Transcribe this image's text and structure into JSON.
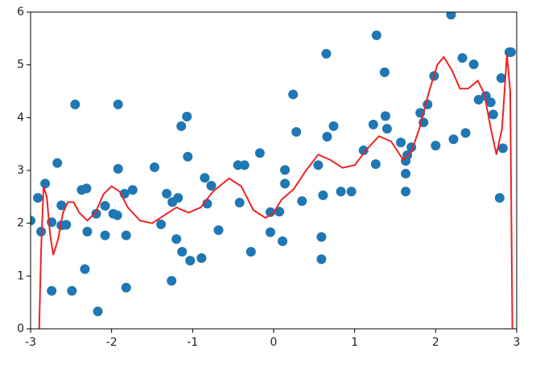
{
  "chart_data": {
    "type": "scatter",
    "xlim": [
      -3,
      3
    ],
    "ylim": [
      0,
      6
    ],
    "xticks": [
      -3,
      -2,
      -1,
      0,
      1,
      2,
      3
    ],
    "yticks": [
      0,
      1,
      2,
      3,
      4,
      5,
      6
    ],
    "grid": false,
    "series": [
      {
        "type": "scatter",
        "color": "#1f77b4",
        "x": [
          -3.0,
          -2.91,
          -2.87,
          -2.82,
          -2.74,
          -2.74,
          -2.67,
          -2.62,
          -2.62,
          -2.56,
          -2.49,
          -2.45,
          -2.37,
          -2.31,
          -2.3,
          -2.33,
          -2.19,
          -2.17,
          -2.08,
          -2.08,
          -1.98,
          -1.93,
          -1.92,
          -1.92,
          -1.84,
          -1.82,
          -1.82,
          -1.74,
          -1.47,
          -1.39,
          -1.32,
          -1.26,
          -1.25,
          -1.18,
          -1.2,
          -1.14,
          -1.13,
          -1.07,
          -1.06,
          -1.03,
          -0.89,
          -0.85,
          -0.82,
          -0.77,
          -0.68,
          -0.44,
          -0.42,
          -0.36,
          -0.28,
          -0.17,
          -0.04,
          -0.04,
          0.07,
          0.11,
          0.14,
          0.14,
          0.24,
          0.28,
          0.35,
          0.55,
          0.59,
          0.59,
          0.61,
          0.65,
          0.66,
          0.74,
          0.83,
          0.96,
          1.11,
          1.23,
          1.26,
          1.27,
          1.37,
          1.38,
          1.4,
          1.57,
          1.63,
          1.63,
          1.63,
          1.65,
          1.7,
          1.81,
          1.85,
          1.9,
          1.98,
          2.0,
          2.19,
          2.22,
          2.33,
          2.37,
          2.47,
          2.53,
          2.62,
          2.68,
          2.71,
          2.79,
          2.81,
          2.83,
          2.91,
          2.93
        ],
        "values": [
          2.05,
          2.48,
          1.84,
          2.75,
          2.02,
          0.72,
          3.14,
          2.34,
          1.96,
          1.97,
          0.72,
          4.25,
          2.63,
          2.66,
          1.84,
          1.13,
          2.18,
          0.33,
          2.33,
          1.77,
          2.18,
          2.15,
          3.03,
          4.25,
          2.56,
          1.77,
          0.78,
          2.63,
          3.06,
          1.98,
          2.56,
          0.91,
          2.4,
          2.48,
          1.7,
          3.84,
          1.46,
          4.02,
          3.26,
          1.29,
          1.34,
          2.86,
          2.37,
          2.71,
          1.87,
          3.1,
          2.39,
          3.1,
          1.46,
          3.33,
          1.83,
          2.21,
          2.22,
          1.66,
          3.01,
          2.75,
          4.44,
          3.73,
          2.42,
          3.1,
          1.74,
          1.32,
          2.53,
          5.21,
          3.64,
          3.84,
          2.6,
          2.6,
          3.38,
          3.87,
          3.12,
          5.56,
          4.86,
          4.03,
          3.79,
          3.53,
          3.18,
          2.94,
          2.6,
          3.29,
          3.44,
          4.09,
          3.91,
          4.25,
          4.79,
          3.47,
          5.95,
          3.59,
          5.13,
          3.71,
          5.01,
          4.34,
          4.41,
          4.29,
          4.06,
          2.48,
          4.75,
          3.42,
          5.24,
          5.24
        ]
      },
      {
        "type": "line",
        "color": "#ee2222",
        "x": [
          -2.91,
          -2.87,
          -2.84,
          -2.8,
          -2.76,
          -2.72,
          -2.66,
          -2.6,
          -2.54,
          -2.47,
          -2.4,
          -2.3,
          -2.2,
          -2.1,
          -2.0,
          -1.9,
          -1.8,
          -1.65,
          -1.5,
          -1.35,
          -1.2,
          -1.05,
          -0.9,
          -0.75,
          -0.55,
          -0.4,
          -0.25,
          -0.1,
          0.0,
          0.1,
          0.25,
          0.4,
          0.55,
          0.7,
          0.85,
          1.0,
          1.15,
          1.3,
          1.45,
          1.6,
          1.7,
          1.8,
          1.92,
          2.02,
          2.1,
          2.2,
          2.3,
          2.4,
          2.52,
          2.6,
          2.68,
          2.75,
          2.82,
          2.88,
          2.92,
          2.95
        ],
        "values": [
          -1.0,
          1.5,
          2.7,
          2.5,
          1.8,
          1.4,
          1.7,
          2.2,
          2.4,
          2.4,
          2.2,
          2.05,
          2.2,
          2.55,
          2.7,
          2.6,
          2.3,
          2.05,
          2.0,
          2.15,
          2.3,
          2.2,
          2.3,
          2.6,
          2.85,
          2.7,
          2.25,
          2.1,
          2.2,
          2.45,
          2.65,
          3.0,
          3.3,
          3.2,
          3.05,
          3.1,
          3.4,
          3.65,
          3.55,
          3.2,
          3.35,
          3.8,
          4.5,
          5.0,
          5.15,
          4.9,
          4.55,
          4.55,
          4.7,
          4.45,
          3.8,
          3.3,
          3.8,
          5.2,
          4.5,
          -0.5
        ]
      }
    ]
  }
}
